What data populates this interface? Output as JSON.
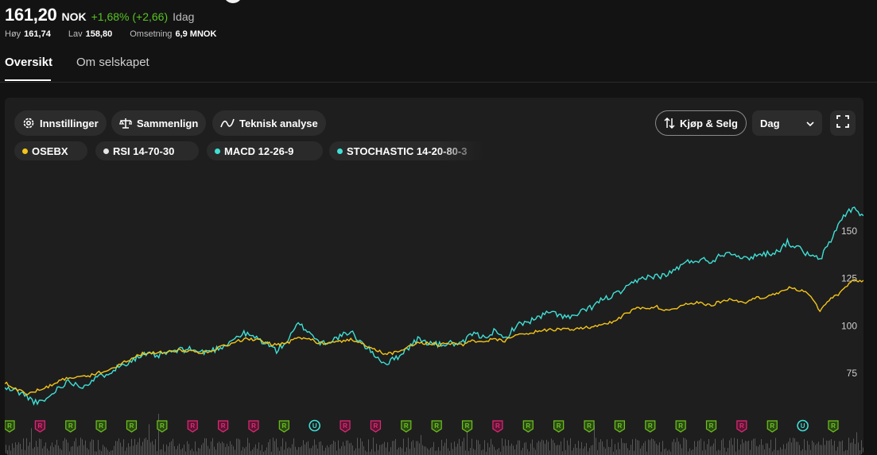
{
  "quote": {
    "price": "161,20",
    "currency": "NOK",
    "change": "+1,68% (+2,66)",
    "period": "Idag"
  },
  "stats": [
    {
      "label": "Høy",
      "value": "161,74"
    },
    {
      "label": "Lav",
      "value": "158,80"
    },
    {
      "label": "Omsetning",
      "value": "6,9 MNOK"
    }
  ],
  "tabs": [
    {
      "label": "Oversikt",
      "active": true
    },
    {
      "label": "Om selskapet",
      "active": false
    }
  ],
  "toolbar": {
    "settings_label": "Innstillinger",
    "compare_label": "Sammenlign",
    "technical_label": "Teknisk analyse",
    "trade_label": "Kjøp & Selg",
    "period_select": "Dag"
  },
  "indicators": [
    {
      "label": "OSEBX",
      "color": "#f5c518"
    },
    {
      "label": "RSI 14-70-30",
      "color": "#e6e6e6"
    },
    {
      "label": "MACD 12-26-9",
      "color": "#3ee0d6"
    },
    {
      "label": "STOCHASTIC 14-20-80-3",
      "color": "#3ee0d6"
    }
  ],
  "icons": {
    "settings": "gear-icon",
    "compare": "scale-icon",
    "technical": "trend-line-icon",
    "trade": "arrows-up-down-icon",
    "select": "chevron-down-icon",
    "fullscreen": "fullscreen-icon"
  },
  "chart_data": {
    "type": "line",
    "y_ticks": [
      "150",
      "125",
      "100",
      "75"
    ],
    "ylim": [
      55,
      170
    ],
    "series": [
      {
        "color": "#3ee0d6",
        "values": [
          67,
          66,
          63,
          59,
          62,
          68,
          71,
          68,
          71,
          74,
          77,
          80,
          83,
          85,
          84,
          86,
          87,
          88,
          86,
          87,
          89,
          93,
          96,
          94,
          91,
          87,
          92,
          101,
          97,
          91,
          92,
          95,
          96,
          90,
          85,
          80,
          83,
          88,
          93,
          91,
          90,
          91,
          90,
          96,
          94,
          97,
          93,
          100,
          102,
          104,
          107,
          106,
          104,
          107,
          110,
          114,
          116,
          119,
          123,
          126,
          126,
          127,
          131,
          134,
          135,
          134,
          138,
          139,
          135,
          137,
          138,
          139,
          144,
          141,
          137,
          135,
          145,
          157,
          162,
          158
        ]
      },
      {
        "color": "#f5c518",
        "values": [
          70,
          67,
          64,
          66,
          68,
          71,
          73,
          73,
          74,
          76,
          78,
          81,
          84,
          86,
          86,
          86,
          87,
          87,
          86,
          87,
          89,
          91,
          93,
          93,
          91,
          90,
          91,
          94,
          93,
          91,
          91,
          92,
          93,
          90,
          88,
          85,
          86,
          89,
          91,
          91,
          90,
          91,
          90,
          92,
          92,
          93,
          92,
          95,
          96,
          97,
          98,
          98,
          98,
          99,
          99,
          101,
          102,
          106,
          109,
          109,
          110,
          108,
          110,
          112,
          112,
          111,
          113,
          114,
          112,
          115,
          115,
          117,
          120,
          119,
          117,
          108,
          114,
          118,
          124,
          124
        ]
      }
    ],
    "events": [
      {
        "type": "R",
        "color": "#6fc11f"
      },
      {
        "type": "R",
        "color": "#e0297a"
      },
      {
        "type": "R",
        "color": "#6fc11f"
      },
      {
        "type": "R",
        "color": "#6fc11f"
      },
      {
        "type": "R",
        "color": "#6fc11f"
      },
      {
        "type": "R",
        "color": "#6fc11f"
      },
      {
        "type": "R",
        "color": "#e0297a"
      },
      {
        "type": "R",
        "color": "#e0297a"
      },
      {
        "type": "R",
        "color": "#e0297a"
      },
      {
        "type": "R",
        "color": "#6fc11f"
      },
      {
        "type": "U",
        "color": "#3ee0d6"
      },
      {
        "type": "R",
        "color": "#e0297a"
      },
      {
        "type": "R",
        "color": "#e0297a"
      },
      {
        "type": "R",
        "color": "#6fc11f"
      },
      {
        "type": "R",
        "color": "#6fc11f"
      },
      {
        "type": "R",
        "color": "#6fc11f"
      },
      {
        "type": "R",
        "color": "#e0297a"
      },
      {
        "type": "R",
        "color": "#6fc11f"
      },
      {
        "type": "R",
        "color": "#6fc11f"
      },
      {
        "type": "R",
        "color": "#6fc11f"
      },
      {
        "type": "R",
        "color": "#6fc11f"
      },
      {
        "type": "R",
        "color": "#6fc11f"
      },
      {
        "type": "R",
        "color": "#6fc11f"
      },
      {
        "type": "R",
        "color": "#6fc11f"
      },
      {
        "type": "R",
        "color": "#e0297a"
      },
      {
        "type": "R",
        "color": "#6fc11f"
      },
      {
        "type": "U",
        "color": "#3ee0d6"
      },
      {
        "type": "R",
        "color": "#6fc11f"
      }
    ]
  }
}
